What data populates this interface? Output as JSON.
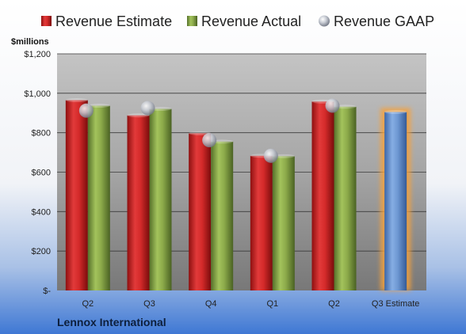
{
  "chart_data": {
    "type": "bar",
    "unit_label": "$millions",
    "footer_label": "Lennox International",
    "categories": [
      "Q2",
      "Q3",
      "Q4",
      "Q1",
      "Q2",
      "Q3 Estimate"
    ],
    "series": [
      {
        "name": "Revenue Estimate",
        "values": [
          965,
          888,
          797,
          683,
          958,
          null
        ]
      },
      {
        "name": "Revenue Actual",
        "values": [
          937,
          921,
          755,
          681,
          932,
          null
        ]
      },
      {
        "name": "Revenue GAAP",
        "values": [
          912,
          925,
          762,
          683,
          937,
          null
        ]
      }
    ],
    "highlight": {
      "category": "Q3 Estimate",
      "value": 905
    },
    "y_ticks": [
      {
        "value": 0,
        "label": "$-"
      },
      {
        "value": 200,
        "label": "$200"
      },
      {
        "value": 400,
        "label": "$400"
      },
      {
        "value": 600,
        "label": "$600"
      },
      {
        "value": 800,
        "label": "$800"
      },
      {
        "value": 1000,
        "label": "$1,000"
      },
      {
        "value": 1200,
        "label": "$1,200"
      }
    ],
    "ylim": [
      0,
      1200
    ],
    "grid": true,
    "legend_position": "top",
    "colors": {
      "estimate": "#d42a2a",
      "actual": "#8caa4a",
      "gaap": "#c8ccd4",
      "highlight": "#6d97d2",
      "highlight_glow": "#f6a13a"
    }
  }
}
